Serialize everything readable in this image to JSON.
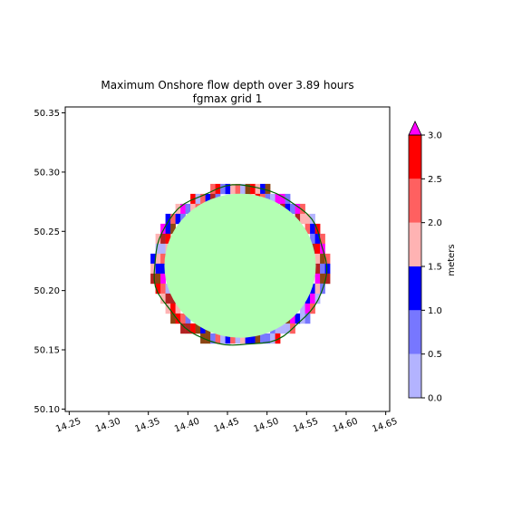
{
  "chart_data": {
    "type": "heatmap",
    "title_line1": "Maximum Onshore flow depth over 3.89 hours",
    "title_line2": "fgmax grid 1",
    "xlim": [
      14.245,
      14.655
    ],
    "ylim": [
      50.098,
      50.355
    ],
    "xticks": [
      "14.25",
      "14.30",
      "14.35",
      "14.40",
      "14.45",
      "14.50",
      "14.55",
      "14.60",
      "14.65"
    ],
    "xtick_values": [
      14.25,
      14.3,
      14.35,
      14.4,
      14.45,
      14.5,
      14.55,
      14.6,
      14.65
    ],
    "yticks": [
      "50.10",
      "50.15",
      "50.20",
      "50.25",
      "50.30",
      "50.35"
    ],
    "ytick_values": [
      50.1,
      50.15,
      50.2,
      50.25,
      50.3,
      50.35
    ],
    "region": {
      "center": [
        14.466,
        50.221
      ],
      "radius_x": 0.1087,
      "radius_y": 0.0675,
      "interior_color": "#b3ffb3",
      "contour_color": "#006400"
    },
    "colorbar": {
      "label": "meters",
      "levels": [
        0.0,
        0.5,
        1.0,
        1.5,
        2.0,
        2.5,
        3.0
      ],
      "tick_labels": [
        "0.0",
        "0.5",
        "1.0",
        "1.5",
        "2.0",
        "2.5",
        "3.0"
      ],
      "colors": [
        "#b3b3ff",
        "#7777ff",
        "#0000ff",
        "#ffb3b3",
        "#ff6060",
        "#ff0000"
      ],
      "extend_color": "#ff00ff"
    },
    "edge_colors": [
      "#b3b3ff",
      "#7777ff",
      "#0000ff",
      "#ffb3b3",
      "#ff6060",
      "#ff0000",
      "#b22222",
      "#8b4513",
      "#ff00ff"
    ]
  }
}
